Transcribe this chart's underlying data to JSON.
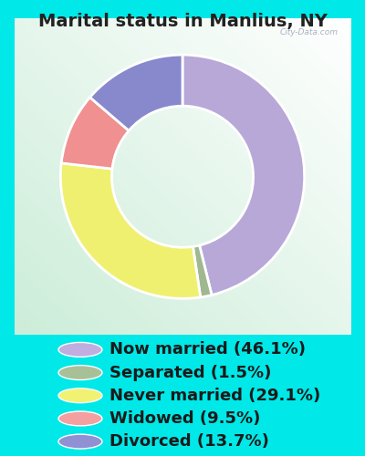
{
  "title": "Marital status in Manlius, NY",
  "slices": [
    46.1,
    1.5,
    29.1,
    9.5,
    13.7
  ],
  "labels": [
    "Now married (46.1%)",
    "Separated (1.5%)",
    "Never married (29.1%)",
    "Widowed (9.5%)",
    "Divorced (13.7%)"
  ],
  "colors": [
    "#b8a8d8",
    "#a0b890",
    "#f0f070",
    "#f09090",
    "#8888cc"
  ],
  "legend_dot_colors": [
    "#c0aee0",
    "#a8c098",
    "#f2f272",
    "#f4a0a0",
    "#9090d4"
  ],
  "start_angle": 90,
  "background_cyan": "#00e8e8",
  "chart_bg": "#e8f5e8",
  "title_fontsize": 14,
  "legend_fontsize": 13,
  "title_color": "#222222",
  "legend_text_color": "#1a1a1a",
  "watermark": "City-Data.com"
}
